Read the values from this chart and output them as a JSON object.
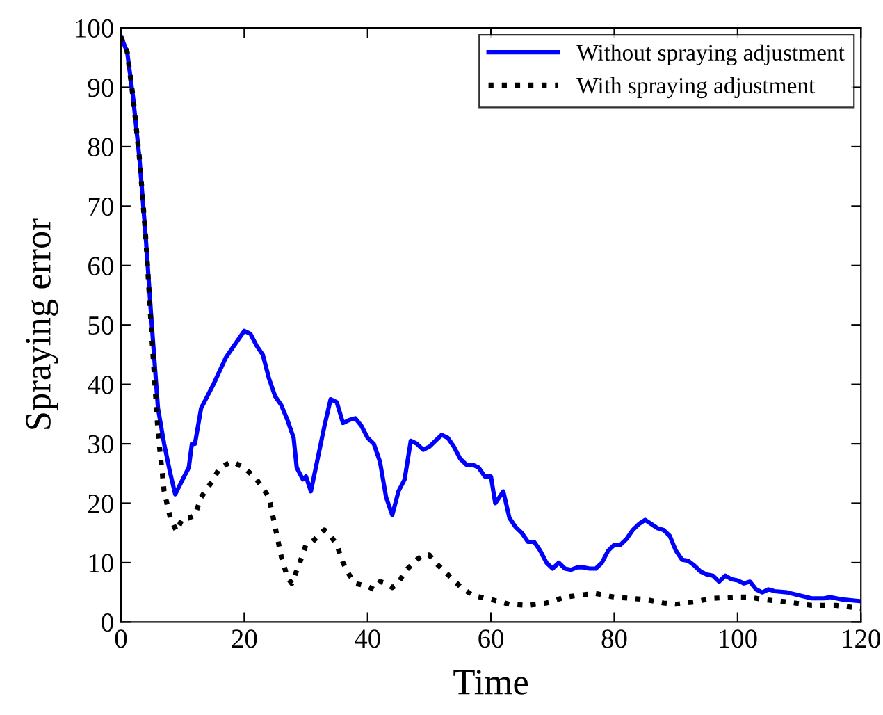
{
  "chart_data": {
    "type": "line",
    "xlabel": "Time",
    "ylabel": "Spraying error",
    "xlim": [
      0,
      120
    ],
    "xticks": [
      0,
      20,
      40,
      60,
      80,
      100,
      120
    ],
    "ylim": [
      0,
      100
    ],
    "yticks": [
      0,
      10,
      20,
      30,
      40,
      50,
      60,
      70,
      80,
      90,
      100
    ],
    "grid": false,
    "legend": "top right",
    "marker": "none",
    "series": [
      {
        "name": "Without spraying adjustment",
        "color": "#0000ff",
        "line_style": "solid",
        "x": [
          0,
          1,
          2,
          3,
          4,
          5,
          6,
          7,
          8,
          8.8,
          10,
          11,
          11.5,
          12,
          13,
          15,
          17,
          19,
          20,
          21,
          22,
          23,
          24,
          25,
          26,
          27,
          28,
          28.5,
          29,
          29.5,
          30,
          30.8,
          32,
          33,
          34,
          35,
          36,
          37,
          38,
          39,
          40,
          41,
          42,
          43,
          44,
          45,
          46,
          47,
          48,
          49,
          50,
          51,
          52,
          53,
          54,
          55,
          56,
          57,
          58,
          59,
          60,
          60.7,
          62,
          63,
          64,
          65,
          66,
          67,
          68,
          69,
          70,
          71,
          72,
          73,
          74,
          75,
          76,
          77,
          78,
          79,
          80,
          81,
          82,
          83,
          84,
          85,
          86,
          87,
          88,
          89,
          90,
          91,
          92,
          93,
          94,
          95,
          96,
          97,
          98,
          99,
          100,
          101,
          102,
          103,
          104,
          105,
          106,
          108,
          110,
          112,
          114,
          115,
          117,
          120
        ],
        "values": [
          98.5,
          96,
          88,
          78,
          65,
          50,
          36,
          30,
          25,
          21.5,
          24,
          26,
          30,
          30,
          36,
          40,
          44.5,
          47.5,
          49,
          48.5,
          46.5,
          45,
          41,
          38,
          36.5,
          34,
          31,
          26,
          25,
          24,
          24.5,
          22,
          28,
          33,
          37.5,
          37,
          33.5,
          34,
          34.3,
          33,
          31,
          30,
          27,
          21,
          18,
          22,
          24,
          30.5,
          30,
          29,
          29.5,
          30.5,
          31.5,
          31,
          29.5,
          27.5,
          26.5,
          26.5,
          26,
          24.5,
          24.5,
          20,
          22,
          17.5,
          16,
          15,
          13.5,
          13.5,
          12,
          10,
          9,
          10,
          9,
          8.8,
          9.2,
          9.2,
          9,
          9,
          10,
          12,
          13,
          13,
          14,
          15.5,
          16.5,
          17.2,
          16.5,
          15.8,
          15.5,
          14.5,
          12,
          10.5,
          10.3,
          9.5,
          8.5,
          8,
          7.8,
          6.8,
          7.8,
          7.2,
          7,
          6.5,
          6.8,
          5.5,
          5,
          5.5,
          5.2,
          5,
          4.5,
          4,
          4,
          4.2,
          3.8,
          3.5
        ]
      },
      {
        "name": "With spraying adjustment",
        "color": "#000000",
        "line_style": "dotted",
        "x": [
          0,
          1,
          2,
          3,
          4,
          5,
          6,
          7,
          8,
          9,
          10,
          11,
          12,
          13,
          14,
          15,
          16,
          18,
          19,
          20,
          22,
          24,
          25,
          26,
          27,
          27.7,
          29,
          30,
          31,
          32,
          33,
          34,
          35,
          36,
          37,
          38,
          40,
          41,
          42,
          43,
          44,
          45,
          46,
          48,
          49,
          50,
          51,
          53,
          55,
          57,
          60,
          63,
          66,
          69,
          72,
          75,
          77,
          80,
          85,
          88,
          90,
          93,
          96,
          100,
          102,
          104,
          108,
          112,
          116,
          120
        ],
        "values": [
          98.5,
          96,
          88,
          78,
          65,
          48,
          32,
          22,
          17.5,
          15.3,
          17.5,
          17.5,
          18,
          21,
          22.5,
          24,
          26,
          27,
          26.5,
          26,
          24,
          21,
          16,
          11,
          7.5,
          6.5,
          10,
          13,
          13.5,
          14.5,
          15.5,
          14.5,
          13,
          10,
          8,
          6.5,
          6,
          5.5,
          6.8,
          6.5,
          5.8,
          6.5,
          8.5,
          10.5,
          11.3,
          11.3,
          10,
          8,
          6,
          4.5,
          3.8,
          3,
          2.8,
          3.2,
          4.2,
          4.6,
          4.8,
          4.2,
          3.8,
          3.2,
          3,
          3.4,
          4,
          4.2,
          4.2,
          3.8,
          3.4,
          2.8,
          2.8,
          2.3
        ]
      }
    ]
  }
}
